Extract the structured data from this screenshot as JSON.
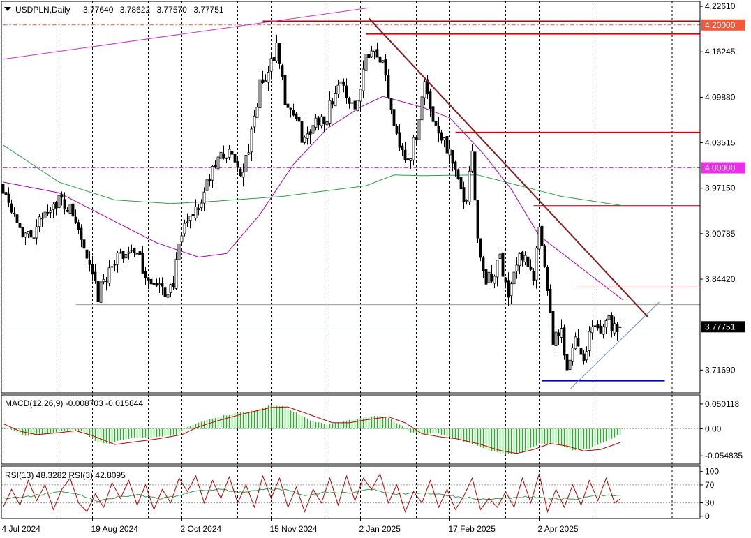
{
  "chart_data": {
    "type": "candlestick",
    "symbol_info": "USDPLN,Daily",
    "ohlc_header": [
      "3.77640",
      "3.78622",
      "3.77570",
      "3.77751"
    ],
    "price_axis": {
      "min": 3.685,
      "max": 4.233,
      "tick_labels": [
        "4.22610",
        "4.16245",
        "4.09880",
        "4.03515",
        "3.97150",
        "3.90785",
        "3.84420",
        "3.71690"
      ],
      "tick_values": [
        4.2261,
        4.16245,
        4.0988,
        4.03515,
        3.9715,
        3.90785,
        3.8442,
        3.7169
      ],
      "highlight_labels": [
        {
          "text": "4.20000",
          "value": 4.2,
          "bg": "#f05a3c",
          "fg": "#ffffff"
        },
        {
          "text": "4.00000",
          "value": 4.0,
          "bg": "#ee2bee",
          "fg": "#ffffff"
        },
        {
          "text": "3.77751",
          "value": 3.77751,
          "bg": "#000000",
          "fg": "#ffffff"
        }
      ]
    },
    "time_axis": {
      "labels": [
        "4 Jul 2024",
        "19 Aug 2024",
        "2 Oct 2024",
        "15 Nov 2024",
        "2 Jan 2025",
        "17 Feb 2025",
        "2 Apr 2025"
      ],
      "label_bars": [
        0,
        32,
        64,
        96,
        128,
        160,
        192
      ],
      "bars_total": 222
    },
    "anchors": [
      [
        0,
        3.975
      ],
      [
        4,
        3.94
      ],
      [
        8,
        3.9
      ],
      [
        12,
        3.915
      ],
      [
        16,
        3.945
      ],
      [
        20,
        3.955
      ],
      [
        25,
        3.935
      ],
      [
        28,
        3.9
      ],
      [
        31,
        3.855
      ],
      [
        34,
        3.82
      ],
      [
        38,
        3.86
      ],
      [
        42,
        3.875
      ],
      [
        46,
        3.89
      ],
      [
        50,
        3.86
      ],
      [
        54,
        3.835
      ],
      [
        58,
        3.825
      ],
      [
        61,
        3.84
      ],
      [
        64,
        3.905
      ],
      [
        67,
        3.935
      ],
      [
        70,
        3.945
      ],
      [
        74,
        3.985
      ],
      [
        78,
        4.02
      ],
      [
        82,
        4.015
      ],
      [
        86,
        3.99
      ],
      [
        89,
        4.045
      ],
      [
        92,
        4.115
      ],
      [
        95,
        4.13
      ],
      [
        98,
        4.175
      ],
      [
        101,
        4.095
      ],
      [
        104,
        4.075
      ],
      [
        108,
        4.035
      ],
      [
        112,
        4.065
      ],
      [
        116,
        4.075
      ],
      [
        120,
        4.12
      ],
      [
        124,
        4.095
      ],
      [
        127,
        4.09
      ],
      [
        130,
        4.16
      ],
      [
        133,
        4.175
      ],
      [
        136,
        4.145
      ],
      [
        139,
        4.085
      ],
      [
        142,
        4.035
      ],
      [
        145,
        4.005
      ],
      [
        148,
        4.05
      ],
      [
        151,
        4.12
      ],
      [
        154,
        4.07
      ],
      [
        157,
        4.045
      ],
      [
        160,
        4.02
      ],
      [
        163,
        3.975
      ],
      [
        166,
        3.955
      ],
      [
        168,
        4.03
      ],
      [
        170,
        3.9
      ],
      [
        172,
        3.85
      ],
      [
        175,
        3.84
      ],
      [
        178,
        3.875
      ],
      [
        181,
        3.825
      ],
      [
        184,
        3.865
      ],
      [
        187,
        3.885
      ],
      [
        190,
        3.84
      ],
      [
        192,
        3.915
      ],
      [
        195,
        3.82
      ],
      [
        197,
        3.76
      ],
      [
        200,
        3.765
      ],
      [
        202,
        3.71
      ],
      [
        205,
        3.765
      ],
      [
        208,
        3.735
      ],
      [
        211,
        3.78
      ],
      [
        214,
        3.765
      ],
      [
        216,
        3.795
      ],
      [
        218,
        3.78
      ],
      [
        221,
        3.777
      ]
    ],
    "moving_averages": [
      {
        "color": "#2e9e4d",
        "anchors": [
          [
            0,
            4.032
          ],
          [
            20,
            3.98
          ],
          [
            40,
            3.955
          ],
          [
            60,
            3.95
          ],
          [
            75,
            3.953
          ],
          [
            100,
            3.96
          ],
          [
            130,
            3.975
          ],
          [
            140,
            3.99
          ],
          [
            150,
            3.989
          ],
          [
            170,
            3.99
          ],
          [
            185,
            3.975
          ],
          [
            200,
            3.96
          ],
          [
            222,
            3.947
          ]
        ]
      },
      {
        "color": "#b000b0",
        "anchors": [
          [
            0,
            3.98
          ],
          [
            20,
            3.965
          ],
          [
            40,
            3.925
          ],
          [
            55,
            3.895
          ],
          [
            70,
            3.875
          ],
          [
            80,
            3.88
          ],
          [
            92,
            3.935
          ],
          [
            104,
            4.005
          ],
          [
            116,
            4.055
          ],
          [
            128,
            4.085
          ],
          [
            136,
            4.1
          ],
          [
            150,
            4.085
          ],
          [
            160,
            4.07
          ],
          [
            172,
            4.02
          ],
          [
            182,
            3.97
          ],
          [
            192,
            3.905
          ],
          [
            202,
            3.875
          ],
          [
            212,
            3.845
          ],
          [
            222,
            3.815
          ]
        ]
      }
    ],
    "horizontal_levels": [
      {
        "value": 4.2052,
        "color": "#c00000",
        "x_from_bar": 93,
        "width": 2
      },
      {
        "value": 4.1875,
        "color": "#e00000",
        "x_from_bar": 130,
        "width": 2
      },
      {
        "value": 4.2,
        "color": "#f05a3c",
        "x_from_bar": 0,
        "width": 1,
        "dash": true
      },
      {
        "value": 4.0495,
        "color": "#e00000",
        "x_from_bar": 162,
        "width": 2
      },
      {
        "value": 4.0,
        "color": "#ee2bee",
        "x_from_bar": 0,
        "width": 1,
        "dash": true
      },
      {
        "value": 3.947,
        "color": "#8b0000",
        "x_from_bar": 190,
        "width": 1
      },
      {
        "value": 3.833,
        "color": "#c00000",
        "x_from_bar": 206,
        "width": 1
      },
      {
        "value": 3.8085,
        "color": "#999999",
        "x_from_bar": 26,
        "width": 1
      },
      {
        "value": 3.7773,
        "color": "#5a6a7a",
        "x_from_bar": 0,
        "width": 1
      },
      {
        "value": 3.702,
        "color": "#0000c0",
        "x_from_bar": 193,
        "width": 2,
        "x_to_bar": 237
      }
    ],
    "trend_lines": [
      {
        "color": "#8b1a1a",
        "width": 2,
        "from": [
          131,
          4.2094
        ],
        "to": [
          231,
          3.791
        ]
      },
      {
        "color": "#6a8ad0",
        "width": 1,
        "from": [
          203,
          3.69
        ],
        "to": [
          235,
          3.812
        ]
      },
      {
        "color": "#cc33cc",
        "width": 1,
        "from": [
          0,
          4.152
        ],
        "to": [
          131,
          4.224
        ]
      }
    ],
    "panels": [
      {
        "name": "MACD",
        "label": "MACD(12,26,9) -0.008703 -0.015844",
        "tick_labels": [
          "0.050118",
          "0.00",
          "-0.054835"
        ],
        "tick_values": [
          0.050118,
          0.0,
          -0.054835
        ],
        "min": -0.063,
        "max": 0.057,
        "histogram_color": "#3aa53a",
        "signal_color": "#c00000",
        "zero_line": true,
        "histogram_anchors": [
          [
            0,
            0.004
          ],
          [
            8,
            -0.014
          ],
          [
            15,
            -0.012
          ],
          [
            22,
            -0.003
          ],
          [
            28,
            -0.004
          ],
          [
            34,
            -0.028
          ],
          [
            38,
            -0.03
          ],
          [
            46,
            -0.018
          ],
          [
            54,
            -0.018
          ],
          [
            62,
            -0.012
          ],
          [
            66,
            0.003
          ],
          [
            72,
            0.016
          ],
          [
            78,
            0.025
          ],
          [
            84,
            0.032
          ],
          [
            90,
            0.036
          ],
          [
            96,
            0.048
          ],
          [
            100,
            0.045
          ],
          [
            104,
            0.035
          ],
          [
            110,
            0.017
          ],
          [
            116,
            0.008
          ],
          [
            122,
            0.015
          ],
          [
            128,
            0.021
          ],
          [
            134,
            0.026
          ],
          [
            138,
            0.022
          ],
          [
            142,
            0.008
          ],
          [
            146,
            -0.008
          ],
          [
            150,
            -0.01
          ],
          [
            156,
            -0.01
          ],
          [
            162,
            -0.02
          ],
          [
            168,
            -0.03
          ],
          [
            174,
            -0.044
          ],
          [
            180,
            -0.052
          ],
          [
            186,
            -0.048
          ],
          [
            192,
            -0.03
          ],
          [
            198,
            -0.03
          ],
          [
            204,
            -0.043
          ],
          [
            210,
            -0.04
          ],
          [
            216,
            -0.025
          ],
          [
            222,
            -0.009
          ]
        ],
        "signal_anchors": [
          [
            0,
            0.01
          ],
          [
            6,
            -0.005
          ],
          [
            12,
            -0.012
          ],
          [
            20,
            -0.008
          ],
          [
            26,
            -0.004
          ],
          [
            32,
            -0.014
          ],
          [
            40,
            -0.032
          ],
          [
            48,
            -0.026
          ],
          [
            56,
            -0.02
          ],
          [
            64,
            -0.012
          ],
          [
            70,
            0.004
          ],
          [
            78,
            0.018
          ],
          [
            86,
            0.03
          ],
          [
            96,
            0.043
          ],
          [
            102,
            0.044
          ],
          [
            110,
            0.028
          ],
          [
            118,
            0.012
          ],
          [
            124,
            0.012
          ],
          [
            130,
            0.018
          ],
          [
            138,
            0.024
          ],
          [
            144,
            0.012
          ],
          [
            150,
            -0.01
          ],
          [
            156,
            -0.016
          ],
          [
            162,
            -0.02
          ],
          [
            170,
            -0.03
          ],
          [
            178,
            -0.044
          ],
          [
            184,
            -0.05
          ],
          [
            190,
            -0.042
          ],
          [
            196,
            -0.03
          ],
          [
            202,
            -0.035
          ],
          [
            208,
            -0.045
          ],
          [
            214,
            -0.042
          ],
          [
            222,
            -0.026
          ]
        ]
      },
      {
        "name": "RSI",
        "label": "RSI(13) 48.3282  RSI(3) 42.8095",
        "tick_labels": [
          "100",
          "70",
          "30",
          "0"
        ],
        "tick_values": [
          100,
          70,
          30,
          0
        ],
        "min": -5,
        "max": 112,
        "levels": [
          70,
          30
        ],
        "slow_color": "#2e9e4d",
        "fast_color": "#c00000",
        "slow_anchors": [
          [
            0,
            40
          ],
          [
            10,
            45
          ],
          [
            20,
            55
          ],
          [
            28,
            48
          ],
          [
            34,
            33
          ],
          [
            40,
            42
          ],
          [
            48,
            48
          ],
          [
            56,
            40
          ],
          [
            62,
            45
          ],
          [
            70,
            58
          ],
          [
            78,
            60
          ],
          [
            86,
            52
          ],
          [
            94,
            62
          ],
          [
            102,
            58
          ],
          [
            108,
            46
          ],
          [
            116,
            54
          ],
          [
            124,
            52
          ],
          [
            132,
            60
          ],
          [
            140,
            50
          ],
          [
            148,
            52
          ],
          [
            156,
            48
          ],
          [
            164,
            43
          ],
          [
            172,
            38
          ],
          [
            180,
            40
          ],
          [
            188,
            44
          ],
          [
            196,
            40
          ],
          [
            204,
            38
          ],
          [
            212,
            46
          ],
          [
            222,
            48
          ]
        ],
        "fast_anchors": [
          [
            0,
            20
          ],
          [
            3,
            60
          ],
          [
            6,
            25
          ],
          [
            9,
            80
          ],
          [
            12,
            35
          ],
          [
            15,
            70
          ],
          [
            18,
            15
          ],
          [
            21,
            60
          ],
          [
            24,
            85
          ],
          [
            27,
            30
          ],
          [
            30,
            10
          ],
          [
            33,
            50
          ],
          [
            36,
            20
          ],
          [
            39,
            75
          ],
          [
            42,
            40
          ],
          [
            45,
            80
          ],
          [
            48,
            25
          ],
          [
            51,
            70
          ],
          [
            54,
            15
          ],
          [
            57,
            60
          ],
          [
            60,
            30
          ],
          [
            63,
            85
          ],
          [
            66,
            55
          ],
          [
            69,
            90
          ],
          [
            72,
            30
          ],
          [
            75,
            80
          ],
          [
            78,
            40
          ],
          [
            81,
            88
          ],
          [
            84,
            30
          ],
          [
            87,
            70
          ],
          [
            90,
            20
          ],
          [
            93,
            90
          ],
          [
            96,
            40
          ],
          [
            99,
            85
          ],
          [
            102,
            20
          ],
          [
            105,
            65
          ],
          [
            108,
            10
          ],
          [
            111,
            60
          ],
          [
            114,
            30
          ],
          [
            117,
            85
          ],
          [
            120,
            25
          ],
          [
            123,
            90
          ],
          [
            126,
            35
          ],
          [
            129,
            85
          ],
          [
            132,
            60
          ],
          [
            135,
            95
          ],
          [
            138,
            30
          ],
          [
            141,
            70
          ],
          [
            144,
            10
          ],
          [
            147,
            55
          ],
          [
            150,
            30
          ],
          [
            153,
            80
          ],
          [
            156,
            20
          ],
          [
            159,
            60
          ],
          [
            162,
            15
          ],
          [
            165,
            45
          ],
          [
            168,
            85
          ],
          [
            171,
            15
          ],
          [
            174,
            40
          ],
          [
            177,
            20
          ],
          [
            180,
            55
          ],
          [
            183,
            20
          ],
          [
            186,
            85
          ],
          [
            189,
            30
          ],
          [
            192,
            95
          ],
          [
            195,
            10
          ],
          [
            198,
            60
          ],
          [
            201,
            20
          ],
          [
            204,
            70
          ],
          [
            207,
            25
          ],
          [
            210,
            80
          ],
          [
            213,
            35
          ],
          [
            216,
            85
          ],
          [
            219,
            30
          ],
          [
            222,
            43
          ]
        ]
      }
    ],
    "last_bar": 221,
    "grid": true,
    "grid_style": "dashed-vertical"
  }
}
